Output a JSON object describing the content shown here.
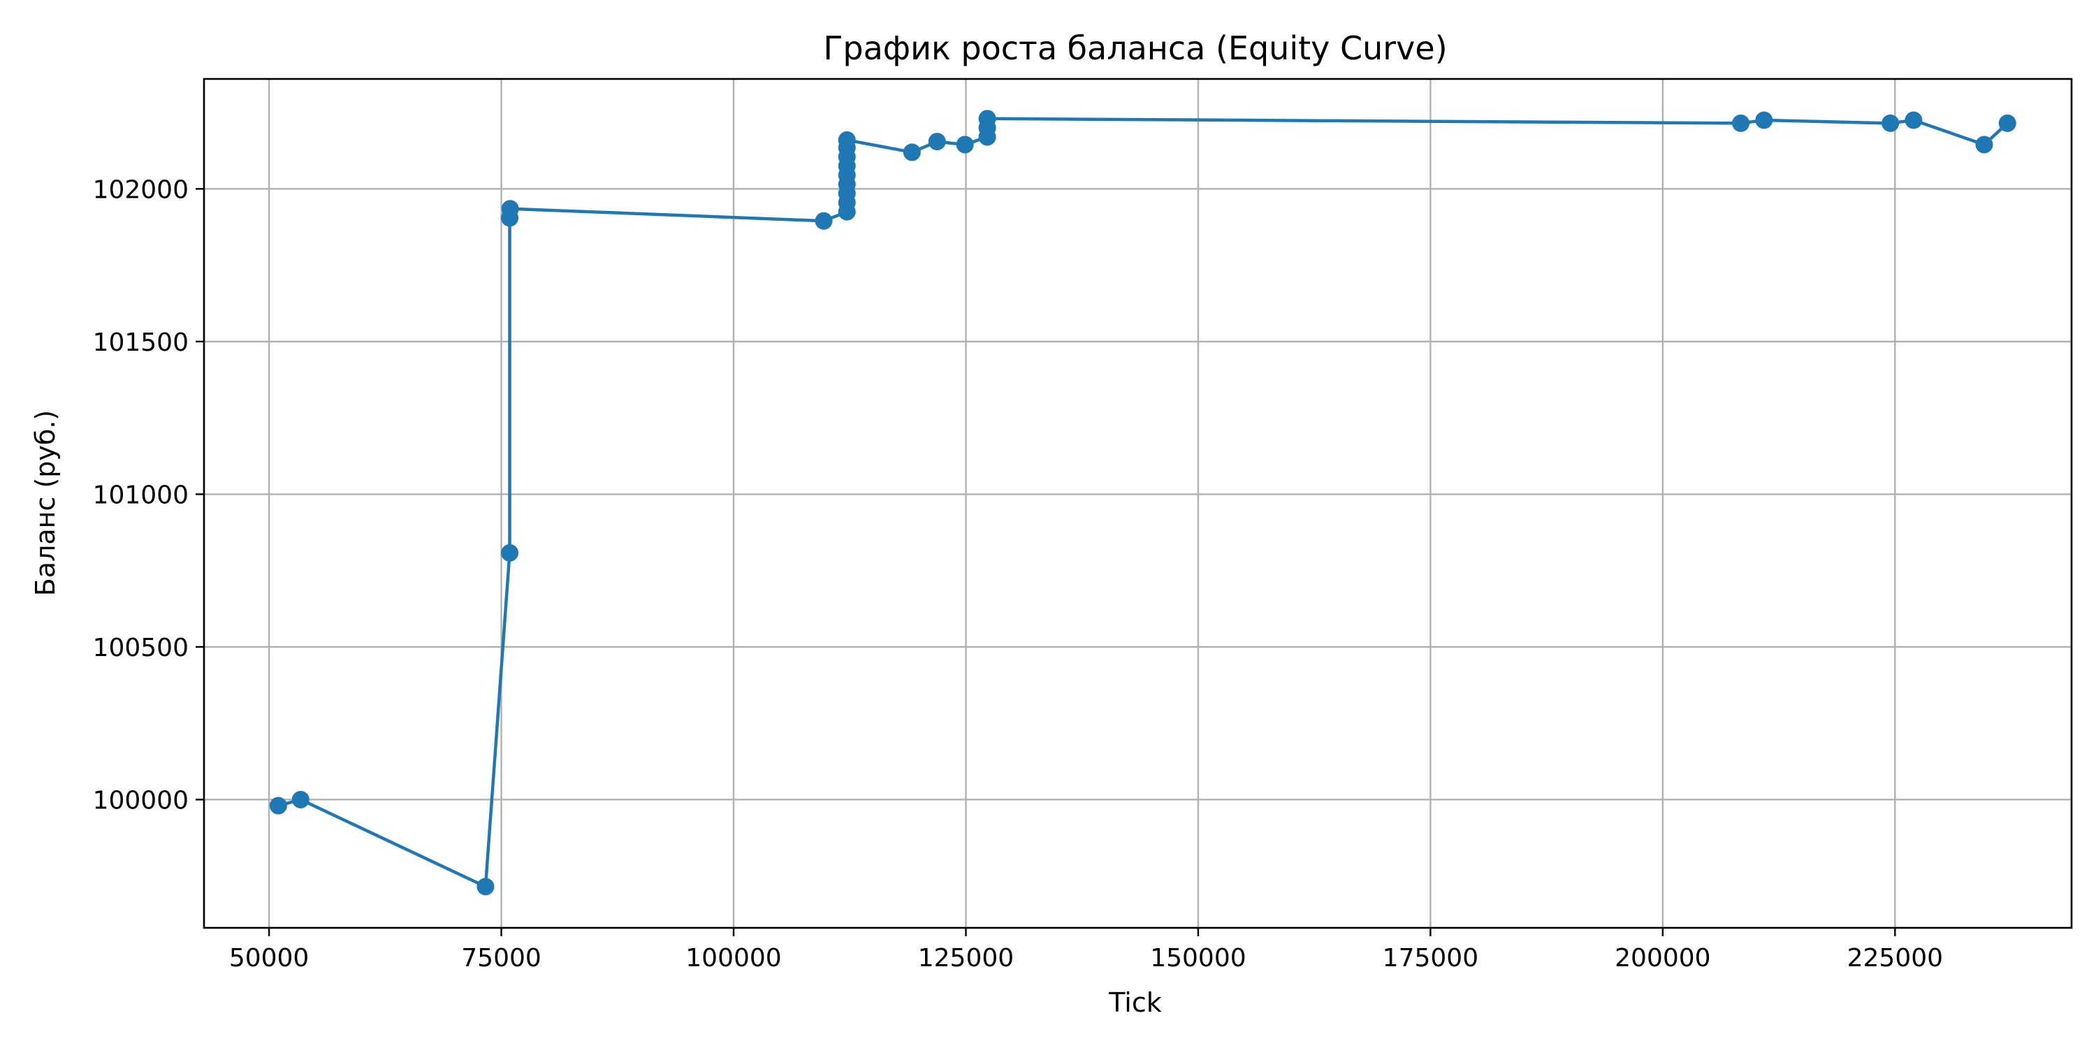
{
  "chart_data": {
    "type": "line",
    "title": "График роста баланса (Equity Curve)",
    "xlabel": "Tick",
    "ylabel": "Баланс (руб.)",
    "xlim": [
      43000,
      244000
    ],
    "ylim": [
      99580,
      102360
    ],
    "grid": true,
    "color": "#1f77b4",
    "x_ticks": [
      50000,
      75000,
      100000,
      125000,
      150000,
      175000,
      200000,
      225000
    ],
    "x_tick_labels": [
      "50000",
      "75000",
      "100000",
      "125000",
      "150000",
      "175000",
      "200000",
      "225000"
    ],
    "y_ticks": [
      100000,
      100500,
      101000,
      101500,
      102000
    ],
    "y_tick_labels": [
      "100000",
      "100500",
      "101000",
      "101500",
      "102000"
    ],
    "series": [
      {
        "points": [
          [
            51000,
            99980
          ],
          [
            53400,
            100000
          ],
          [
            73300,
            99715
          ],
          [
            75900,
            100808
          ],
          [
            75900,
            101905
          ],
          [
            75950,
            101935
          ],
          [
            109700,
            101895
          ],
          [
            112200,
            101925
          ],
          [
            112200,
            101955
          ],
          [
            112200,
            101985
          ],
          [
            112200,
            102015
          ],
          [
            112200,
            102045
          ],
          [
            112200,
            102075
          ],
          [
            112200,
            102105
          ],
          [
            112200,
            102135
          ],
          [
            112200,
            102160
          ],
          [
            119200,
            102120
          ],
          [
            121900,
            102155
          ],
          [
            124900,
            102145
          ],
          [
            127300,
            102170
          ],
          [
            127300,
            102200
          ],
          [
            127300,
            102230
          ],
          [
            208400,
            102215
          ],
          [
            210900,
            102225
          ],
          [
            224500,
            102215
          ],
          [
            227000,
            102225
          ],
          [
            234600,
            102145
          ],
          [
            237100,
            102215
          ]
        ]
      }
    ]
  }
}
